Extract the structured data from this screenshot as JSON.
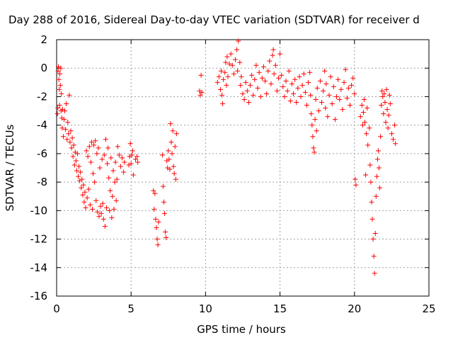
{
  "chart_data": {
    "type": "scatter",
    "title": "Day 288 of 2016, Sidereal Day-to-day VTEC variation (SDTVAR) for receiver d",
    "xlabel": "GPS time / hours",
    "ylabel": "SDTVAR / TECUs",
    "xlim": [
      0,
      25
    ],
    "ylim": [
      -16,
      2
    ],
    "xticks": [
      "0",
      "5",
      "10",
      "15",
      "20",
      "25"
    ],
    "yticks": [
      "2",
      "0",
      "-2",
      "-4",
      "-6",
      "-8",
      "-10",
      "-12",
      "-14",
      "-16"
    ],
    "xtick_values": [
      0,
      5,
      10,
      15,
      20,
      25
    ],
    "ytick_values": [
      2,
      0,
      -2,
      -4,
      -6,
      -8,
      -10,
      -12,
      -14,
      -16
    ],
    "grid": true,
    "marker": "+",
    "color": "#ff0000",
    "series": [
      {
        "name": "SDTVAR",
        "points": [
          [
            0.05,
            -3.2
          ],
          [
            0.08,
            -2.8
          ],
          [
            0.1,
            -0.2
          ],
          [
            0.12,
            0.1
          ],
          [
            0.15,
            -0.8
          ],
          [
            0.18,
            -1.5
          ],
          [
            0.2,
            -2.6
          ],
          [
            0.22,
            -0.4
          ],
          [
            0.25,
            -1.2
          ],
          [
            0.28,
            0.0
          ],
          [
            0.3,
            -3.0
          ],
          [
            0.32,
            -1.8
          ],
          [
            0.35,
            -3.5
          ],
          [
            0.38,
            -4.2
          ],
          [
            0.4,
            -2.9
          ],
          [
            0.45,
            -4.8
          ],
          [
            0.5,
            -3.6
          ],
          [
            0.55,
            -3.0
          ],
          [
            0.6,
            -4.3
          ],
          [
            0.65,
            -2.5
          ],
          [
            0.7,
            -5.0
          ],
          [
            0.75,
            -3.8
          ],
          [
            0.8,
            -4.6
          ],
          [
            0.85,
            -1.9
          ],
          [
            0.9,
            -5.2
          ],
          [
            0.95,
            -4.4
          ],
          [
            1.0,
            -5.6
          ],
          [
            1.05,
            -4.9
          ],
          [
            1.1,
            -6.2
          ],
          [
            1.15,
            -5.4
          ],
          [
            1.2,
            -6.8
          ],
          [
            1.25,
            -5.9
          ],
          [
            1.3,
            -6.5
          ],
          [
            1.35,
            -7.2
          ],
          [
            1.4,
            -6.0
          ],
          [
            1.45,
            -7.6
          ],
          [
            1.5,
            -6.9
          ],
          [
            1.55,
            -7.9
          ],
          [
            1.6,
            -7.3
          ],
          [
            1.65,
            -8.4
          ],
          [
            1.7,
            -7.8
          ],
          [
            1.75,
            -8.9
          ],
          [
            1.8,
            -8.2
          ],
          [
            1.85,
            -9.4
          ],
          [
            1.9,
            -8.7
          ],
          [
            1.95,
            -9.8
          ],
          [
            2.0,
            -5.8
          ],
          [
            2.05,
            -9.1
          ],
          [
            2.1,
            -6.2
          ],
          [
            2.15,
            -8.5
          ],
          [
            2.2,
            -5.5
          ],
          [
            2.25,
            -9.6
          ],
          [
            2.3,
            -6.6
          ],
          [
            2.35,
            -5.2
          ],
          [
            2.4,
            -9.9
          ],
          [
            2.45,
            -7.4
          ],
          [
            2.5,
            -5.4
          ],
          [
            2.55,
            -8.0
          ],
          [
            2.6,
            -5.1
          ],
          [
            2.65,
            -9.3
          ],
          [
            2.7,
            -6.0
          ],
          [
            2.75,
            -10.1
          ],
          [
            2.8,
            -5.6
          ],
          [
            2.85,
            -10.4
          ],
          [
            2.9,
            -7.0
          ],
          [
            2.95,
            -9.7
          ],
          [
            3.0,
            -10.2
          ],
          [
            3.05,
            -6.4
          ],
          [
            3.1,
            -9.5
          ],
          [
            3.15,
            -10.6
          ],
          [
            3.2,
            -6.1
          ],
          [
            3.25,
            -11.1
          ],
          [
            3.3,
            -5.0
          ],
          [
            3.35,
            -9.8
          ],
          [
            3.4,
            -6.7
          ],
          [
            3.45,
            -5.6
          ],
          [
            3.5,
            -7.7
          ],
          [
            3.55,
            -10.0
          ],
          [
            3.6,
            -8.6
          ],
          [
            3.65,
            -6.3
          ],
          [
            3.7,
            -10.5
          ],
          [
            3.75,
            -9.0
          ],
          [
            3.8,
            -7.2
          ],
          [
            3.85,
            -9.9
          ],
          [
            3.9,
            -8.0
          ],
          [
            3.95,
            -6.6
          ],
          [
            4.0,
            -9.3
          ],
          [
            4.05,
            -7.8
          ],
          [
            4.1,
            -5.5
          ],
          [
            4.2,
            -6.1
          ],
          [
            4.3,
            -6.9
          ],
          [
            4.4,
            -6.3
          ],
          [
            4.5,
            -7.3
          ],
          [
            4.55,
            -6.6
          ],
          [
            4.85,
            -6.8
          ],
          [
            4.9,
            -6.2
          ],
          [
            4.95,
            -5.3
          ],
          [
            5.0,
            -6.7
          ],
          [
            5.05,
            -6.1
          ],
          [
            5.1,
            -5.8
          ],
          [
            5.15,
            -7.5
          ],
          [
            5.3,
            -6.4
          ],
          [
            5.4,
            -6.2
          ],
          [
            5.45,
            -6.6
          ],
          [
            6.5,
            -8.6
          ],
          [
            6.55,
            -9.9
          ],
          [
            6.6,
            -8.8
          ],
          [
            6.65,
            -10.6
          ],
          [
            6.7,
            -11.2
          ],
          [
            6.75,
            -12.0
          ],
          [
            6.8,
            -12.4
          ],
          [
            6.85,
            -10.8
          ],
          [
            7.1,
            -6.1
          ],
          [
            7.15,
            -8.3
          ],
          [
            7.2,
            -9.4
          ],
          [
            7.25,
            -10.2
          ],
          [
            7.3,
            -11.5
          ],
          [
            7.35,
            -11.9
          ],
          [
            7.4,
            -6.5
          ],
          [
            7.45,
            -7.0
          ],
          [
            7.5,
            -5.8
          ],
          [
            7.55,
            -6.4
          ],
          [
            7.6,
            -7.1
          ],
          [
            7.65,
            -3.9
          ],
          [
            7.7,
            -5.2
          ],
          [
            7.75,
            -6.0
          ],
          [
            7.8,
            -4.4
          ],
          [
            7.85,
            -6.9
          ],
          [
            7.9,
            -7.4
          ],
          [
            7.95,
            -5.5
          ],
          [
            8.0,
            -7.8
          ],
          [
            8.05,
            -4.6
          ],
          [
            9.6,
            -1.6
          ],
          [
            9.65,
            -1.9
          ],
          [
            9.7,
            -0.5
          ],
          [
            9.75,
            -1.7
          ],
          [
            10.8,
            -1.0
          ],
          [
            10.9,
            -0.6
          ],
          [
            11.0,
            -1.5
          ],
          [
            11.05,
            -0.2
          ],
          [
            11.1,
            -1.9
          ],
          [
            11.15,
            -2.5
          ],
          [
            11.2,
            -0.8
          ],
          [
            11.3,
            -0.3
          ],
          [
            11.35,
            0.4
          ],
          [
            11.4,
            -1.2
          ],
          [
            11.45,
            0.8
          ],
          [
            11.5,
            -0.6
          ],
          [
            11.6,
            0.3
          ],
          [
            11.7,
            1.0
          ],
          [
            11.8,
            0.2
          ],
          [
            11.9,
            -0.4
          ],
          [
            12.0,
            0.6
          ],
          [
            12.1,
            1.3
          ],
          [
            12.15,
            -0.2
          ],
          [
            12.2,
            1.9
          ],
          [
            12.3,
            0.4
          ],
          [
            12.35,
            -1.2
          ],
          [
            12.4,
            -0.6
          ],
          [
            12.5,
            -1.8
          ],
          [
            12.6,
            -2.2
          ],
          [
            12.7,
            -1.0
          ],
          [
            12.8,
            -1.6
          ],
          [
            12.9,
            -2.4
          ],
          [
            13.0,
            -1.2
          ],
          [
            13.1,
            -0.5
          ],
          [
            13.2,
            -1.9
          ],
          [
            13.3,
            -0.8
          ],
          [
            13.4,
            0.2
          ],
          [
            13.5,
            -1.4
          ],
          [
            13.6,
            -0.3
          ],
          [
            13.7,
            -2.0
          ],
          [
            13.8,
            -0.7
          ],
          [
            13.9,
            0.1
          ],
          [
            14.0,
            -0.9
          ],
          [
            14.1,
            -1.8
          ],
          [
            14.2,
            -0.2
          ],
          [
            14.3,
            0.5
          ],
          [
            14.4,
            -1.1
          ],
          [
            14.5,
            0.9
          ],
          [
            14.55,
            1.3
          ],
          [
            14.6,
            -0.4
          ],
          [
            14.7,
            0.2
          ],
          [
            14.8,
            -1.6
          ],
          [
            14.9,
            -0.7
          ],
          [
            15.0,
            1.0
          ],
          [
            15.1,
            -0.5
          ],
          [
            15.2,
            -1.3
          ],
          [
            15.3,
            -2.0
          ],
          [
            15.4,
            -0.9
          ],
          [
            15.5,
            -1.6
          ],
          [
            15.6,
            -0.2
          ],
          [
            15.7,
            -2.3
          ],
          [
            15.8,
            -1.1
          ],
          [
            15.9,
            -1.8
          ],
          [
            16.0,
            -0.8
          ],
          [
            16.1,
            -2.4
          ],
          [
            16.2,
            -1.4
          ],
          [
            16.3,
            -0.6
          ],
          [
            16.4,
            -2.0
          ],
          [
            16.5,
            -1.2
          ],
          [
            16.6,
            -0.4
          ],
          [
            16.7,
            -1.7
          ],
          [
            16.8,
            -2.6
          ],
          [
            16.9,
            -1.0
          ],
          [
            17.0,
            -0.3
          ],
          [
            17.05,
            -1.9
          ],
          [
            17.1,
            -3.2
          ],
          [
            17.15,
            -4.0
          ],
          [
            17.2,
            -4.8
          ],
          [
            17.25,
            -5.6
          ],
          [
            17.3,
            -5.9
          ],
          [
            17.35,
            -3.6
          ],
          [
            17.4,
            -2.2
          ],
          [
            17.45,
            -4.4
          ],
          [
            17.5,
            -1.4
          ],
          [
            17.6,
            -3.0
          ],
          [
            17.7,
            -0.9
          ],
          [
            17.8,
            -2.4
          ],
          [
            17.9,
            -1.6
          ],
          [
            18.0,
            -0.2
          ],
          [
            18.05,
            -2.8
          ],
          [
            18.1,
            -1.1
          ],
          [
            18.2,
            -3.4
          ],
          [
            18.3,
            -1.9
          ],
          [
            18.4,
            -0.6
          ],
          [
            18.5,
            -2.5
          ],
          [
            18.6,
            -1.3
          ],
          [
            18.7,
            -3.6
          ],
          [
            18.8,
            -2.0
          ],
          [
            18.9,
            -0.8
          ],
          [
            19.0,
            -2.2
          ],
          [
            19.1,
            -1.5
          ],
          [
            19.2,
            -2.9
          ],
          [
            19.3,
            -1.0
          ],
          [
            19.4,
            -0.1
          ],
          [
            19.5,
            -2.1
          ],
          [
            19.6,
            -1.4
          ],
          [
            19.7,
            -2.6
          ],
          [
            19.8,
            -1.2
          ],
          [
            19.9,
            -0.7
          ],
          [
            20.0,
            -1.8
          ],
          [
            20.05,
            -7.8
          ],
          [
            20.1,
            -8.2
          ],
          [
            20.4,
            -3.4
          ],
          [
            20.5,
            -2.6
          ],
          [
            20.55,
            -4.0
          ],
          [
            20.6,
            -3.1
          ],
          [
            20.65,
            -2.2
          ],
          [
            20.7,
            -3.8
          ],
          [
            20.75,
            -7.5
          ],
          [
            20.8,
            -4.6
          ],
          [
            20.85,
            -2.8
          ],
          [
            20.9,
            -5.4
          ],
          [
            21.0,
            -4.2
          ],
          [
            21.05,
            -6.8
          ],
          [
            21.1,
            -8.0
          ],
          [
            21.15,
            -9.4
          ],
          [
            21.2,
            -10.6
          ],
          [
            21.25,
            -12.0
          ],
          [
            21.3,
            -13.2
          ],
          [
            21.35,
            -14.4
          ],
          [
            21.4,
            -11.6
          ],
          [
            21.45,
            -9.0
          ],
          [
            21.5,
            -7.6
          ],
          [
            21.55,
            -6.4
          ],
          [
            21.6,
            -5.8
          ],
          [
            21.65,
            -7.0
          ],
          [
            21.7,
            -8.4
          ],
          [
            21.75,
            -4.8
          ],
          [
            21.8,
            -2.6
          ],
          [
            21.85,
            -1.6
          ],
          [
            21.9,
            -2.0
          ],
          [
            21.95,
            -3.2
          ],
          [
            22.0,
            -1.8
          ],
          [
            22.05,
            -2.4
          ],
          [
            22.1,
            -3.8
          ],
          [
            22.15,
            -1.5
          ],
          [
            22.2,
            -2.9
          ],
          [
            22.25,
            -4.2
          ],
          [
            22.3,
            -3.3
          ],
          [
            22.35,
            -1.9
          ],
          [
            22.4,
            -2.5
          ],
          [
            22.5,
            -4.6
          ],
          [
            22.6,
            -5.0
          ],
          [
            22.7,
            -4.0
          ],
          [
            22.75,
            -5.3
          ]
        ]
      }
    ]
  }
}
